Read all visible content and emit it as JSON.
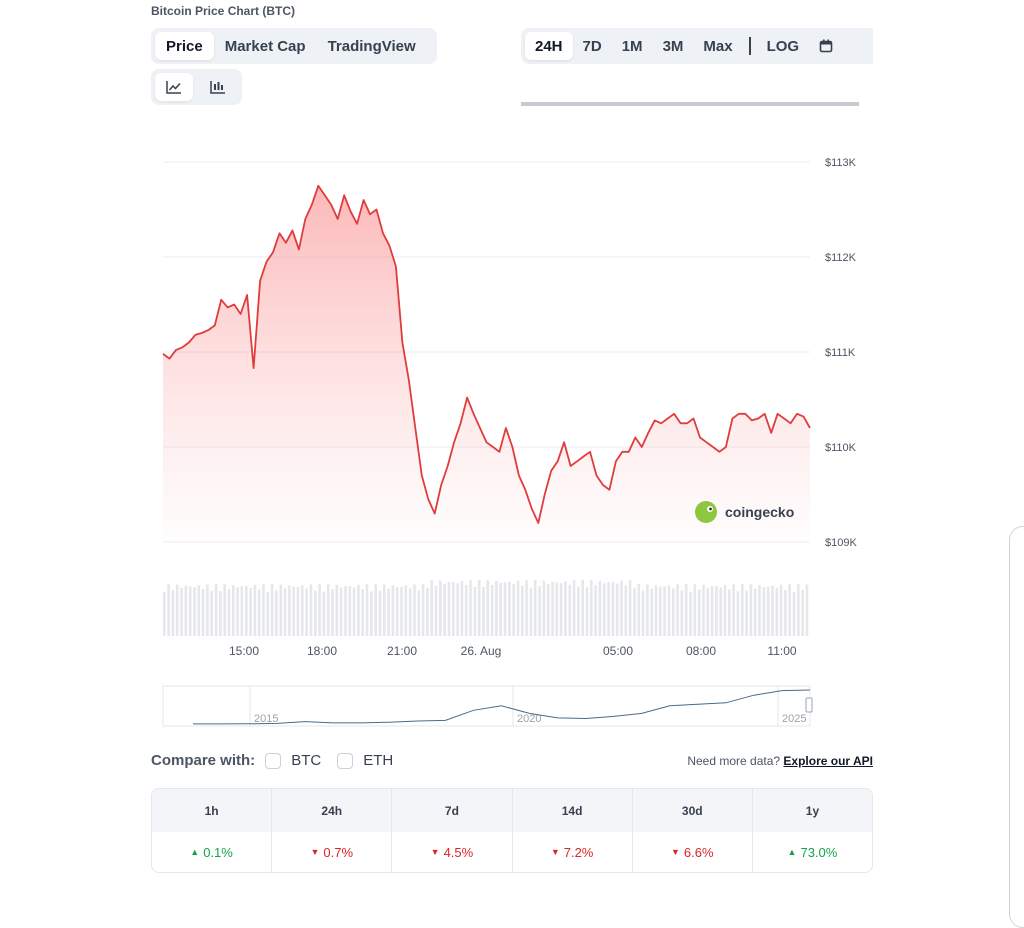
{
  "title": "Bitcoin Price Chart (BTC)",
  "tabs": [
    {
      "label": "Price",
      "active": true
    },
    {
      "label": "Market Cap",
      "active": false
    },
    {
      "label": "TradingView",
      "active": false
    }
  ],
  "ranges": [
    {
      "label": "24H",
      "active": true
    },
    {
      "label": "7D",
      "active": false
    },
    {
      "label": "1M",
      "active": false
    },
    {
      "label": "3M",
      "active": false
    },
    {
      "label": "Max",
      "active": false
    }
  ],
  "log_label": "LOG",
  "icons": {
    "calendar": "calendar-icon",
    "line_chart": "line-chart-icon",
    "candlestick": "candlestick-chart-icon",
    "logo": "coingecko-logo-icon"
  },
  "watermark": "coingecko",
  "chart_data": {
    "type": "line",
    "y_ticks": [
      "$113K",
      "$112K",
      "$111K",
      "$110K",
      "$109K"
    ],
    "ylim": [
      109000,
      113000
    ],
    "x_ticks": [
      "15:00",
      "18:00",
      "21:00",
      "26. Aug",
      "05:00",
      "08:00",
      "11:00"
    ],
    "series": [
      {
        "color": "#e03c3c",
        "values": [
          110980,
          110930,
          111020,
          111050,
          111100,
          111180,
          111200,
          111230,
          111280,
          111550,
          111470,
          111500,
          111400,
          111600,
          110830,
          111750,
          111950,
          112050,
          112250,
          112150,
          112280,
          112080,
          112400,
          112550,
          112750,
          112650,
          112550,
          112400,
          112650,
          112480,
          112350,
          112600,
          112450,
          112500,
          112250,
          112120,
          111900,
          111100,
          110700,
          110200,
          109700,
          109450,
          109300,
          109600,
          109800,
          110050,
          110250,
          110520,
          110350,
          110200,
          110050,
          110000,
          109950,
          110200,
          110000,
          109700,
          109550,
          109350,
          109200,
          109500,
          109750,
          109850,
          110050,
          109800,
          109850,
          109900,
          109950,
          109700,
          109600,
          109550,
          109850,
          109950,
          109950,
          110100,
          110000,
          110150,
          110280,
          110250,
          110300,
          110350,
          110250,
          110250,
          110300,
          110100,
          110050,
          110000,
          109950,
          110000,
          110300,
          110350,
          110350,
          110280,
          110300,
          110350,
          110150,
          110350,
          110300,
          110250,
          110350,
          110320,
          110200
        ]
      }
    ],
    "volume": {
      "color": "#e5e7eb"
    },
    "overview": {
      "x_ticks": [
        "2015",
        "2020",
        "2025"
      ],
      "values": [
        0.2,
        0.3,
        0.6,
        2.0,
        8.0,
        3.5,
        3.5,
        6.0,
        10.0,
        12.0,
        45.0,
        60.0,
        35.0,
        20.0,
        18.0,
        25.0,
        35.0,
        60.0,
        65.0,
        70.0,
        95.0,
        110.0,
        112.0
      ]
    }
  },
  "compare": {
    "label": "Compare with:",
    "options": [
      "BTC",
      "ETH"
    ]
  },
  "api": {
    "text": "Need more data?",
    "link": "Explore our API"
  },
  "stats": {
    "headers": [
      "1h",
      "24h",
      "7d",
      "14d",
      "30d",
      "1y"
    ],
    "values": [
      {
        "text": "0.1%",
        "dir": "up"
      },
      {
        "text": "0.7%",
        "dir": "down"
      },
      {
        "text": "4.5%",
        "dir": "down"
      },
      {
        "text": "7.2%",
        "dir": "down"
      },
      {
        "text": "6.6%",
        "dir": "down"
      },
      {
        "text": "73.0%",
        "dir": "up"
      }
    ]
  }
}
